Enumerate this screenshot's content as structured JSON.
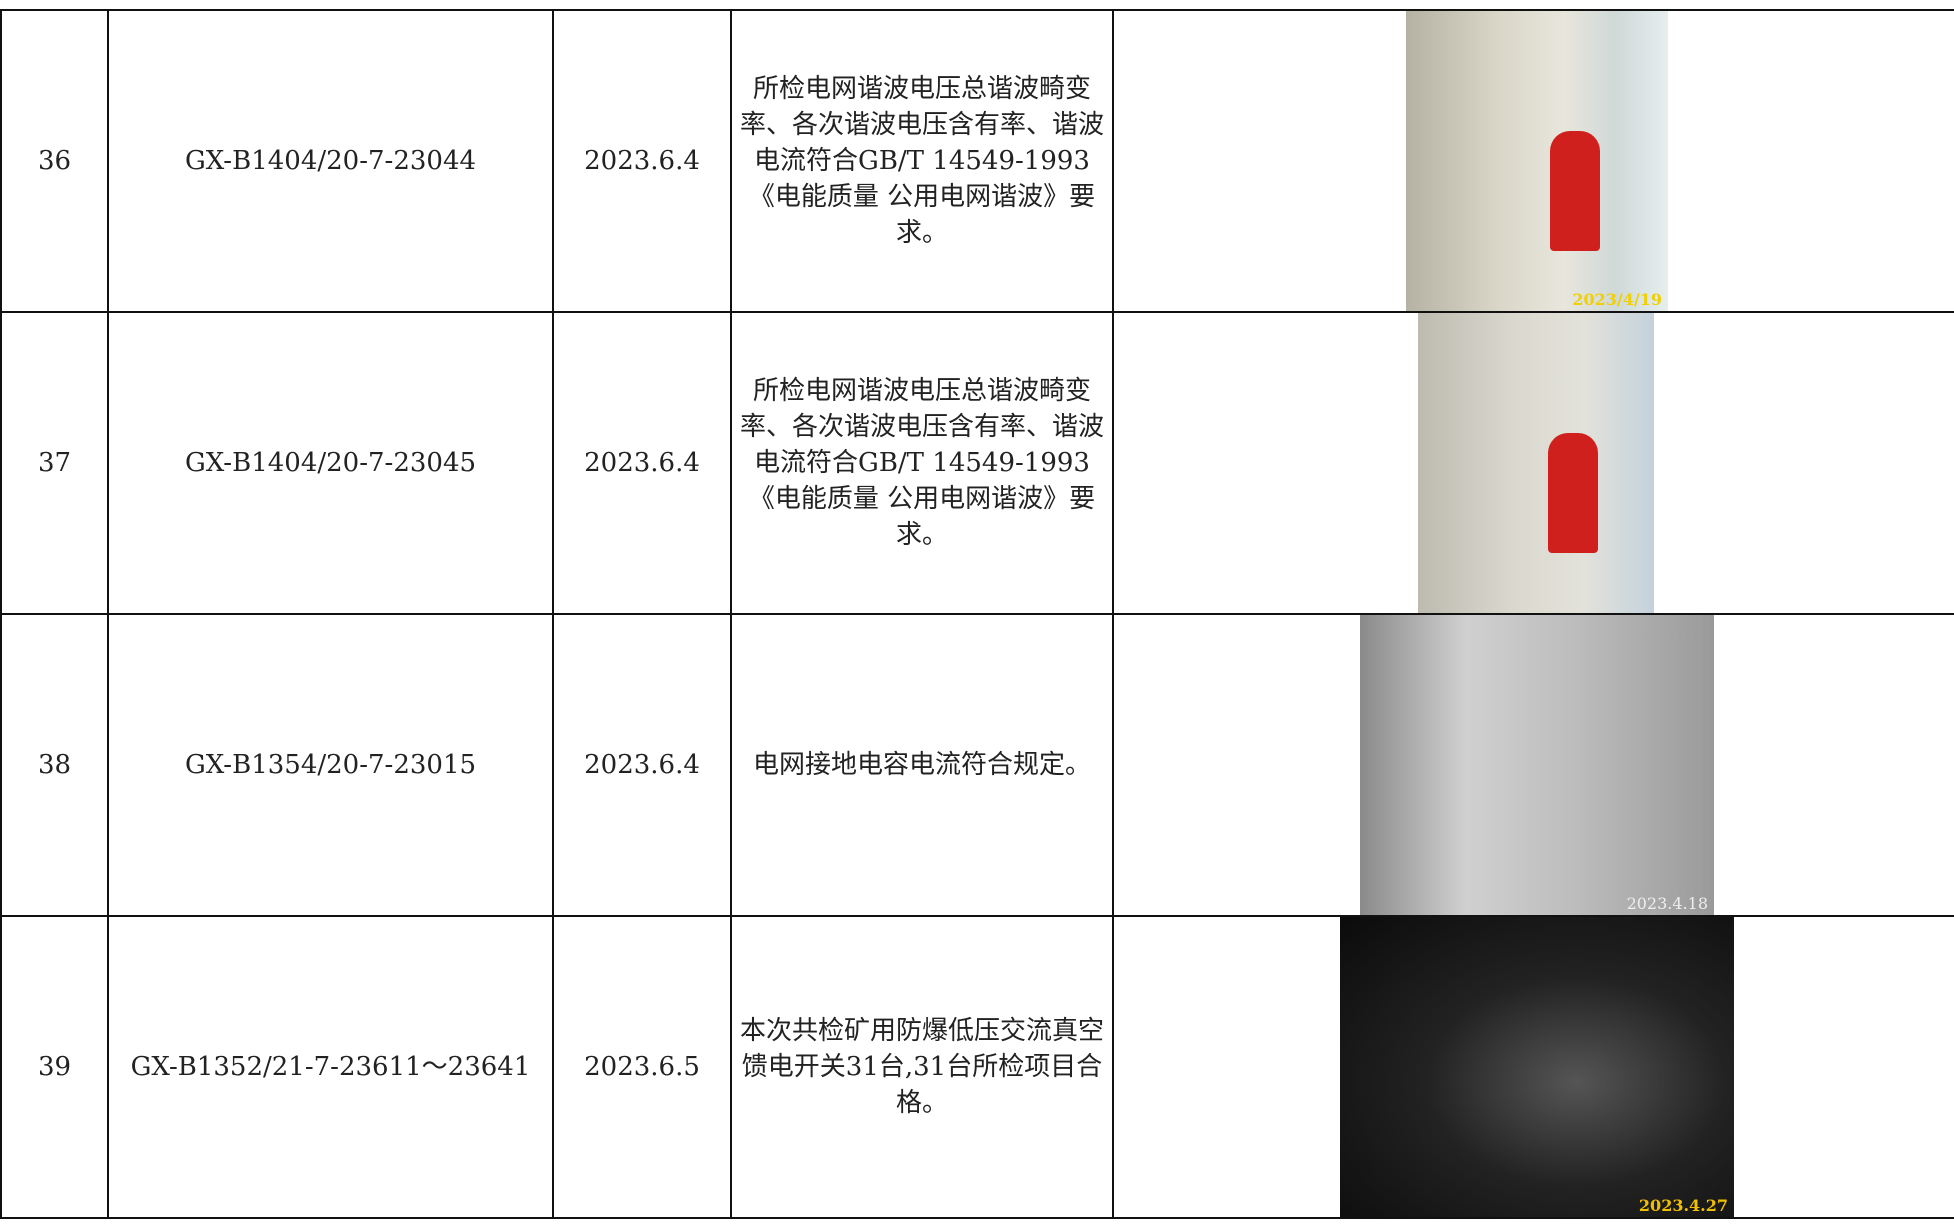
{
  "table": {
    "rows": [
      {
        "no": "36",
        "code": "GX-B1404/20-7-23044",
        "date": "2023.6.4",
        "result": "所检电网谐波电压总谐波畸变率、各次谐波电压含有率、谐波电流符合GB/T 14549-1993 《电能质量 公用电网谐波》要求。",
        "photo_stamp": "2023/4/19"
      },
      {
        "no": "37",
        "code": "GX-B1404/20-7-23045",
        "date": "2023.6.4",
        "result": "所检电网谐波电压总谐波畸变率、各次谐波电压含有率、谐波电流符合GB/T 14549-1993 《电能质量 公用电网谐波》要求。"
      },
      {
        "no": "38",
        "code": "GX-B1354/20-7-23015",
        "date": "2023.6.4",
        "result": "电网接地电容电流符合规定。",
        "photo_stamp": "2023.4.18"
      },
      {
        "no": "39",
        "code": "GX-B1352/21-7-23611～23641",
        "date": "2023.6.5",
        "result": "本次共检矿用防爆低压交流真空馈电开关31台,31台所检项目合格。",
        "photo_stamp": "2023.4.27"
      }
    ]
  }
}
